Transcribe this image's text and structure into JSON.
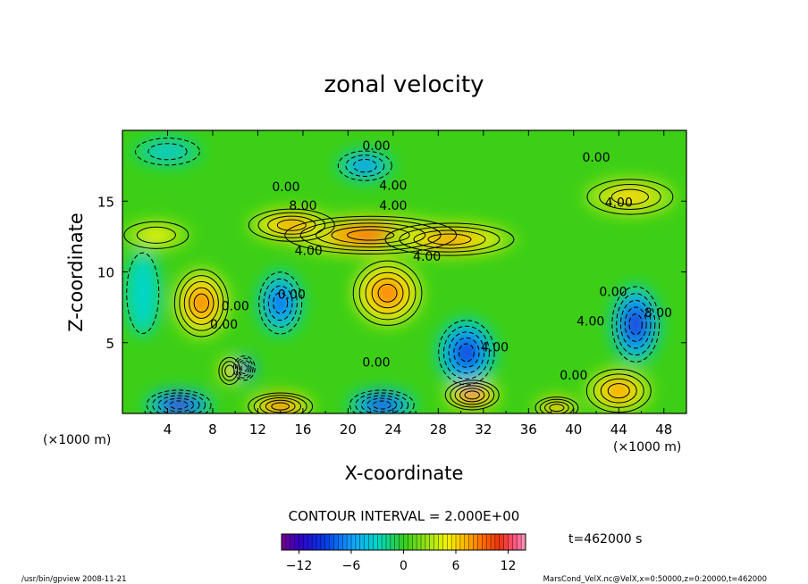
{
  "chart_data": {
    "type": "heatmap",
    "title": "zonal velocity",
    "xlabel": "X-coordinate",
    "ylabel": "Z-coordinate",
    "x_unit_left": "(×1000 m)",
    "x_unit_right": "(×1000 m)",
    "xlim": [
      0,
      50
    ],
    "ylim": [
      0,
      20
    ],
    "x_ticks": [
      4,
      8,
      12,
      16,
      20,
      24,
      28,
      32,
      36,
      40,
      44,
      48
    ],
    "y_ticks": [
      5,
      10,
      15
    ],
    "contour_interval": "CONTOUR INTERVAL = 2.000E+00",
    "time_label": "t=462000 s",
    "colorbar": {
      "range": [
        -14,
        14
      ],
      "ticks": [
        -12,
        -6,
        0,
        6,
        12
      ]
    },
    "contour_labels": [
      {
        "text": "0.00",
        "x": 22.5,
        "y": 18.6
      },
      {
        "text": "0.00",
        "x": 42,
        "y": 17.8
      },
      {
        "text": "0.00",
        "x": 14.5,
        "y": 15.7
      },
      {
        "text": "4.00",
        "x": 24,
        "y": 15.8
      },
      {
        "text": "4.00",
        "x": 44,
        "y": 14.6
      },
      {
        "text": "8.00",
        "x": 16,
        "y": 14.4
      },
      {
        "text": "4.00",
        "x": 24,
        "y": 14.4
      },
      {
        "text": "4.00",
        "x": 16.5,
        "y": 11.2
      },
      {
        "text": "4.00",
        "x": 27,
        "y": 10.8
      },
      {
        "text": "0.00",
        "x": 10,
        "y": 7.3
      },
      {
        "text": "0.00",
        "x": 9,
        "y": 6.0
      },
      {
        "text": "0.00",
        "x": 15,
        "y": 8.1
      },
      {
        "text": "4.00",
        "x": 33,
        "y": 4.4
      },
      {
        "text": "0.00",
        "x": 22.5,
        "y": 3.3
      },
      {
        "text": "0.00",
        "x": 43.5,
        "y": 8.3
      },
      {
        "text": "4.00",
        "x": 41.5,
        "y": 6.2
      },
      {
        "text": "8.00",
        "x": 47.5,
        "y": 6.8
      },
      {
        "text": "0.00",
        "x": 40,
        "y": 2.4
      }
    ],
    "features": [
      {
        "x": 22,
        "y": 12.6,
        "value": 11,
        "sx": 8,
        "sy": 1.4
      },
      {
        "x": 29,
        "y": 12.3,
        "value": 9,
        "sx": 6,
        "sy": 1.2
      },
      {
        "x": 15,
        "y": 13.3,
        "value": 9,
        "sx": 4,
        "sy": 1.2
      },
      {
        "x": 3,
        "y": 12.6,
        "value": 5,
        "sx": 3,
        "sy": 1
      },
      {
        "x": 45,
        "y": 15.3,
        "value": 6,
        "sx": 4,
        "sy": 1.3
      },
      {
        "x": 7,
        "y": 7.8,
        "value": 10,
        "sx": 2.5,
        "sy": 2.5
      },
      {
        "x": 23.5,
        "y": 8.5,
        "value": 10,
        "sx": 3.2,
        "sy": 2.4
      },
      {
        "x": 44,
        "y": 1.6,
        "value": 9,
        "sx": 3,
        "sy": 1.6
      },
      {
        "x": 31,
        "y": 1.3,
        "value": 12,
        "sx": 2.5,
        "sy": 1.1
      },
      {
        "x": 14,
        "y": 0.5,
        "value": 11,
        "sx": 3,
        "sy": 1
      },
      {
        "x": 38.5,
        "y": 0.4,
        "value": 9,
        "sx": 2,
        "sy": 0.8
      },
      {
        "x": 21.5,
        "y": 17.5,
        "value": -7,
        "sx": 2.5,
        "sy": 1.1
      },
      {
        "x": 14,
        "y": 7.8,
        "value": -9,
        "sx": 2,
        "sy": 2.3
      },
      {
        "x": 30.5,
        "y": 4.3,
        "value": -11,
        "sx": 2.6,
        "sy": 2.4
      },
      {
        "x": 45.5,
        "y": 6.3,
        "value": -12,
        "sx": 2.2,
        "sy": 2.8
      },
      {
        "x": 5,
        "y": 0.6,
        "value": -14,
        "sx": 3,
        "sy": 1.1
      },
      {
        "x": 23,
        "y": 0.6,
        "value": -12,
        "sx": 3,
        "sy": 1.1
      },
      {
        "x": 10.8,
        "y": 3.2,
        "value": -12,
        "sx": 1,
        "sy": 0.9
      },
      {
        "x": 4,
        "y": 18.5,
        "value": -4,
        "sx": 3,
        "sy": 1
      },
      {
        "x": 9.5,
        "y": 3,
        "value": 7,
        "sx": 1,
        "sy": 1
      },
      {
        "x": 1.8,
        "y": 8.5,
        "value": -3,
        "sx": 1.5,
        "sy": 3
      }
    ]
  },
  "footer": {
    "left": "/usr/bin/gpview   2008-11-21",
    "right": "MarsCond_VelX.nc@VelX,x=0:50000,z=0:20000,t=462000"
  }
}
